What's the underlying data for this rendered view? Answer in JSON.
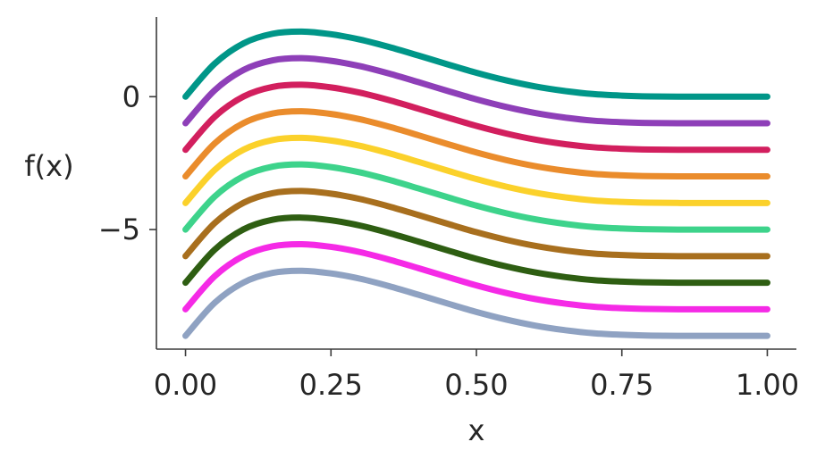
{
  "chart_data": {
    "type": "line",
    "title": "",
    "xlabel": "x",
    "ylabel": "f(x)",
    "xlim": [
      -0.05,
      1.05
    ],
    "ylim": [
      -9.5,
      3.0
    ],
    "xticks": [
      0.0,
      0.25,
      0.5,
      0.75,
      1.0
    ],
    "xtick_labels": [
      "0.00",
      "0.25",
      "0.50",
      "0.75",
      "1.00"
    ],
    "yticks": [
      0,
      -5
    ],
    "ytick_labels": [
      "0",
      "−5"
    ],
    "grid": false,
    "x": [
      0.0,
      0.05,
      0.1,
      0.15,
      0.2,
      0.25,
      0.3,
      0.35,
      0.4,
      0.45,
      0.5,
      0.55,
      0.6,
      0.65,
      0.7,
      0.75,
      0.8,
      0.85,
      0.9,
      0.95,
      1.0
    ],
    "series": [
      {
        "color": "#009688",
        "values": [
          0.0,
          1.24,
          2.01,
          2.37,
          2.45,
          2.35,
          2.15,
          1.87,
          1.55,
          1.22,
          0.9,
          0.62,
          0.39,
          0.22,
          0.1,
          0.04,
          0.01,
          0.0,
          0.0,
          0.0,
          0.0
        ]
      },
      {
        "color": "#8e3fb8",
        "values": [
          -1.0,
          0.24,
          1.01,
          1.37,
          1.45,
          1.35,
          1.15,
          0.87,
          0.55,
          0.22,
          -0.1,
          -0.38,
          -0.61,
          -0.78,
          -0.9,
          -0.96,
          -0.99,
          -1.0,
          -1.0,
          -1.0,
          -1.0
        ]
      },
      {
        "color": "#d21f5e",
        "values": [
          -2.0,
          -0.76,
          0.01,
          0.37,
          0.45,
          0.35,
          0.15,
          -0.13,
          -0.45,
          -0.78,
          -1.1,
          -1.38,
          -1.61,
          -1.78,
          -1.9,
          -1.96,
          -1.99,
          -2.0,
          -2.0,
          -2.0,
          -2.0
        ]
      },
      {
        "color": "#ea8c2c",
        "values": [
          -3.0,
          -1.76,
          -0.99,
          -0.63,
          -0.55,
          -0.65,
          -0.85,
          -1.13,
          -1.45,
          -1.78,
          -2.1,
          -2.38,
          -2.61,
          -2.78,
          -2.9,
          -2.96,
          -2.99,
          -3.0,
          -3.0,
          -3.0,
          -3.0
        ]
      },
      {
        "color": "#fbd12b",
        "values": [
          -4.0,
          -2.76,
          -1.99,
          -1.63,
          -1.55,
          -1.65,
          -1.85,
          -2.13,
          -2.45,
          -2.78,
          -3.1,
          -3.38,
          -3.61,
          -3.78,
          -3.9,
          -3.96,
          -3.99,
          -4.0,
          -4.0,
          -4.0,
          -4.0
        ]
      },
      {
        "color": "#3dd38b",
        "values": [
          -5.0,
          -3.76,
          -2.99,
          -2.63,
          -2.55,
          -2.65,
          -2.85,
          -3.13,
          -3.45,
          -3.78,
          -4.1,
          -4.38,
          -4.61,
          -4.78,
          -4.9,
          -4.96,
          -4.99,
          -5.0,
          -5.0,
          -5.0,
          -5.0
        ]
      },
      {
        "color": "#a86f1e",
        "values": [
          -6.0,
          -4.76,
          -3.99,
          -3.63,
          -3.55,
          -3.65,
          -3.85,
          -4.13,
          -4.45,
          -4.78,
          -5.1,
          -5.38,
          -5.61,
          -5.78,
          -5.9,
          -5.96,
          -5.99,
          -6.0,
          -6.0,
          -6.0,
          -6.0
        ]
      },
      {
        "color": "#2e5e12",
        "values": [
          -7.0,
          -5.76,
          -4.99,
          -4.63,
          -4.55,
          -4.65,
          -4.85,
          -5.13,
          -5.45,
          -5.78,
          -6.1,
          -6.38,
          -6.61,
          -6.78,
          -6.9,
          -6.96,
          -6.99,
          -7.0,
          -7.0,
          -7.0,
          -7.0
        ]
      },
      {
        "color": "#f52ae6",
        "values": [
          -8.0,
          -6.76,
          -5.99,
          -5.63,
          -5.55,
          -5.65,
          -5.85,
          -6.13,
          -6.45,
          -6.78,
          -7.1,
          -7.38,
          -7.61,
          -7.78,
          -7.9,
          -7.96,
          -7.99,
          -8.0,
          -8.0,
          -8.0,
          -8.0
        ]
      },
      {
        "color": "#8fa2c2",
        "values": [
          -9.0,
          -7.76,
          -6.99,
          -6.63,
          -6.55,
          -6.65,
          -6.85,
          -7.13,
          -7.45,
          -7.78,
          -8.1,
          -8.38,
          -8.61,
          -8.78,
          -8.9,
          -8.96,
          -8.99,
          -9.0,
          -9.0,
          -9.0,
          -9.0
        ]
      }
    ]
  }
}
